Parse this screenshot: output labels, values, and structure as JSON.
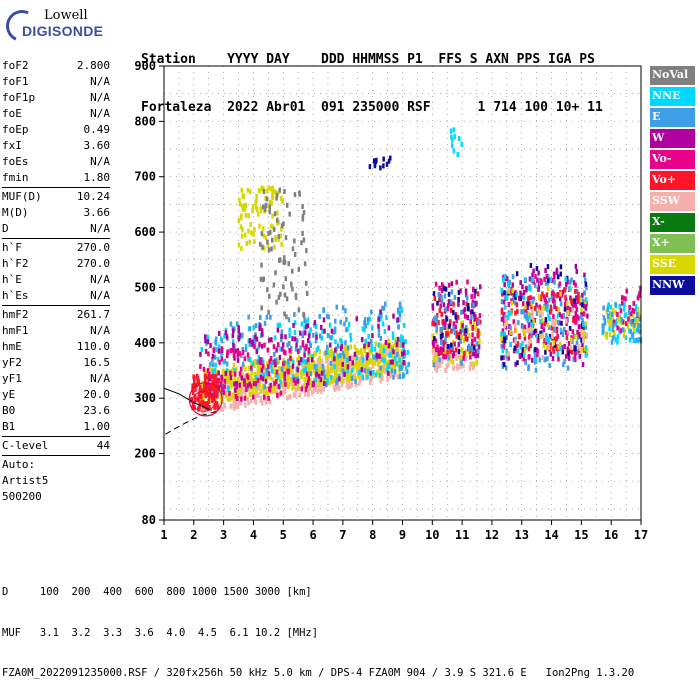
{
  "logo": {
    "line1": "Lowell",
    "line2": "DIGISONDE"
  },
  "header": {
    "line1": "Station    YYYY DAY    DDD HHMMSS P1  FFS S AXN PPS IGA PS",
    "line2": "Fortaleza  2022 Abr01  091 235000 RSF      1 714 100 10+ 11"
  },
  "params": {
    "group1": [
      {
        "k": "foF2",
        "v": "2.800"
      },
      {
        "k": "foF1",
        "v": "N/A"
      },
      {
        "k": "foF1p",
        "v": "N/A"
      },
      {
        "k": "foE",
        "v": "N/A"
      },
      {
        "k": "foEp",
        "v": "0.49"
      },
      {
        "k": "fxI",
        "v": "3.60"
      },
      {
        "k": "foEs",
        "v": "N/A"
      },
      {
        "k": "fmin",
        "v": "1.80"
      }
    ],
    "group2": [
      {
        "k": "MUF(D)",
        "v": "10.24"
      },
      {
        "k": "M(D)",
        "v": "3.66"
      },
      {
        "k": "D",
        "v": "N/A"
      }
    ],
    "group3": [
      {
        "k": "h`F",
        "v": "270.0"
      },
      {
        "k": "h`F2",
        "v": "270.0"
      },
      {
        "k": "h`E",
        "v": "N/A"
      },
      {
        "k": "h`Es",
        "v": "N/A"
      }
    ],
    "group4": [
      {
        "k": "hmF2",
        "v": "261.7"
      },
      {
        "k": "hmF1",
        "v": "N/A"
      },
      {
        "k": "hmE",
        "v": "110.0"
      },
      {
        "k": "yF2",
        "v": "16.5"
      },
      {
        "k": "yF1",
        "v": "N/A"
      },
      {
        "k": "yE",
        "v": "20.0"
      },
      {
        "k": "B0",
        "v": "23.6"
      },
      {
        "k": "B1",
        "v": "1.00"
      }
    ],
    "group5": [
      {
        "k": "C-level",
        "v": "44"
      }
    ],
    "group6": [
      "Auto:",
      "Artist5",
      "500200"
    ]
  },
  "legend": [
    {
      "label": "NoVal",
      "color": "#808080"
    },
    {
      "label": "NNE",
      "color": "#00d8ff"
    },
    {
      "label": "E",
      "color": "#3e9ee6"
    },
    {
      "label": "W",
      "color": "#b0009e"
    },
    {
      "label": "Vo-",
      "color": "#e8008a"
    },
    {
      "label": "Vo+",
      "color": "#ff1428"
    },
    {
      "label": "SSW",
      "color": "#f5b0ac"
    },
    {
      "label": "X-",
      "color": "#0a7a10"
    },
    {
      "label": "X+",
      "color": "#7fbf54"
    },
    {
      "label": "SSE",
      "color": "#d8d800"
    },
    {
      "label": "NNW",
      "color": "#0c0c9c"
    }
  ],
  "chart_data": {
    "type": "scatter",
    "xlim": [
      1,
      17
    ],
    "ylim": [
      80,
      900
    ],
    "xticks": [
      1,
      2,
      3,
      4,
      5,
      6,
      7,
      8,
      9,
      10,
      11,
      12,
      13,
      14,
      15,
      16,
      17
    ],
    "yticks": [
      80,
      200,
      300,
      400,
      500,
      600,
      700,
      800,
      900
    ],
    "grid": true,
    "legend_position": "right",
    "clusters": [
      {
        "color": "#f5b0ac",
        "xmin": 2.2,
        "xmax": 9.0,
        "ymin": 270,
        "ymax": 330,
        "slope": 10,
        "n": 500
      },
      {
        "color": "#d8d800",
        "xmin": 2.2,
        "xmax": 9.0,
        "ymin": 288,
        "ymax": 350,
        "slope": 9,
        "n": 520
      },
      {
        "color": "#d8d800",
        "xmin": 3.5,
        "xmax": 5.0,
        "ymin": 570,
        "ymax": 680,
        "slope": 0,
        "n": 90
      },
      {
        "color": "#00d8ff",
        "xmin": 2.2,
        "xmax": 9.2,
        "ymin": 300,
        "ymax": 420,
        "slope": 6,
        "n": 180
      },
      {
        "color": "#3e9ee6",
        "xmin": 2.5,
        "xmax": 9.2,
        "ymin": 300,
        "ymax": 440,
        "slope": 6,
        "n": 160
      },
      {
        "color": "#b0009e",
        "xmin": 2.2,
        "xmax": 9.2,
        "ymin": 300,
        "ymax": 420,
        "slope": 6,
        "n": 140
      },
      {
        "color": "#e8008a",
        "xmin": 2.2,
        "xmax": 6.0,
        "ymin": 290,
        "ymax": 390,
        "slope": 4,
        "n": 110
      },
      {
        "color": "#ff1428",
        "xmin": 1.9,
        "xmax": 2.8,
        "ymin": 280,
        "ymax": 340,
        "slope": 0,
        "n": 90
      },
      {
        "color": "#808080",
        "xmin": 4.2,
        "xmax": 5.8,
        "ymin": 440,
        "ymax": 680,
        "slope": 0,
        "n": 80
      },
      {
        "color": "#0c0c9c",
        "xmin": 7.8,
        "xmax": 8.6,
        "ymin": 715,
        "ymax": 735,
        "slope": 0,
        "n": 12
      },
      {
        "color": "#00d8ff",
        "xmin": 10.6,
        "xmax": 11.0,
        "ymin": 740,
        "ymax": 790,
        "slope": 0,
        "n": 10
      },
      {
        "color": "#f5b0ac",
        "xmin": 10.0,
        "xmax": 11.4,
        "ymin": 350,
        "ymax": 390,
        "slope": 0,
        "n": 60
      },
      {
        "color": "#d8d800",
        "xmin": 10.0,
        "xmax": 11.6,
        "ymin": 360,
        "ymax": 440,
        "slope": 0,
        "n": 60
      },
      {
        "color": "#e8008a",
        "xmin": 10.0,
        "xmax": 11.6,
        "ymin": 370,
        "ymax": 510,
        "slope": 0,
        "n": 60
      },
      {
        "color": "#b0009e",
        "xmin": 10.0,
        "xmax": 11.6,
        "ymin": 370,
        "ymax": 510,
        "slope": 0,
        "n": 50
      },
      {
        "color": "#ff1428",
        "xmin": 10.0,
        "xmax": 11.6,
        "ymin": 380,
        "ymax": 490,
        "slope": 0,
        "n": 40
      },
      {
        "color": "#3e9ee6",
        "xmin": 10.0,
        "xmax": 11.6,
        "ymin": 360,
        "ymax": 500,
        "slope": 0,
        "n": 40
      },
      {
        "color": "#0c0c9c",
        "xmin": 10.0,
        "xmax": 11.6,
        "ymin": 380,
        "ymax": 500,
        "slope": 0,
        "n": 25
      },
      {
        "color": "#b0009e",
        "xmin": 12.3,
        "xmax": 15.2,
        "ymin": 360,
        "ymax": 540,
        "slope": 0,
        "n": 120
      },
      {
        "color": "#3e9ee6",
        "xmin": 12.3,
        "xmax": 15.2,
        "ymin": 350,
        "ymax": 520,
        "slope": 0,
        "n": 120
      },
      {
        "color": "#e8008a",
        "xmin": 12.3,
        "xmax": 15.2,
        "ymin": 370,
        "ymax": 520,
        "slope": 0,
        "n": 110
      },
      {
        "color": "#ff1428",
        "xmin": 12.3,
        "xmax": 15.2,
        "ymin": 380,
        "ymax": 500,
        "slope": 0,
        "n": 60
      },
      {
        "color": "#0c0c9c",
        "xmin": 12.3,
        "xmax": 15.2,
        "ymin": 360,
        "ymax": 540,
        "slope": 0,
        "n": 50
      },
      {
        "color": "#d8d800",
        "xmin": 12.3,
        "xmax": 15.2,
        "ymin": 380,
        "ymax": 500,
        "slope": 0,
        "n": 50
      },
      {
        "color": "#00d8ff",
        "xmin": 12.3,
        "xmax": 15.2,
        "ymin": 370,
        "ymax": 520,
        "slope": 0,
        "n": 50
      },
      {
        "color": "#f5b0ac",
        "xmin": 12.3,
        "xmax": 15.2,
        "ymin": 370,
        "ymax": 460,
        "slope": 0,
        "n": 30
      },
      {
        "color": "#00d8ff",
        "xmin": 15.7,
        "xmax": 17.0,
        "ymin": 400,
        "ymax": 470,
        "slope": 0,
        "n": 50
      },
      {
        "color": "#d8d800",
        "xmin": 15.7,
        "xmax": 17.0,
        "ymin": 410,
        "ymax": 460,
        "slope": 0,
        "n": 40
      },
      {
        "color": "#e8008a",
        "xmin": 16.0,
        "xmax": 17.0,
        "ymin": 420,
        "ymax": 500,
        "slope": 0,
        "n": 25
      },
      {
        "color": "#3e9ee6",
        "xmin": 15.7,
        "xmax": 17.0,
        "ymin": 400,
        "ymax": 470,
        "slope": 0,
        "n": 30
      }
    ],
    "trace_dashed": {
      "x": [
        1.05,
        1.6,
        2.2,
        2.9
      ],
      "y": [
        235,
        252,
        268,
        278
      ]
    },
    "trace_solid": {
      "x": [
        1.0,
        1.5,
        2.0,
        2.6
      ],
      "y": [
        318,
        308,
        292,
        278
      ]
    },
    "contour": {
      "cx": 2.4,
      "cy": 298,
      "rx": 0.55,
      "ry": 30
    }
  },
  "footer": {
    "line1": "D     100  200  400  600  800 1000 1500 3000 [km]",
    "line2": "MUF   3.1  3.2  3.3  3.6  4.0  4.5  6.1 10.2 [MHz]",
    "line3": "FZA0M_2022091235000.RSF / 320fx256h 50 kHz 5.0 km / DPS-4 FZA0M 904 / 3.9 S 321.6 E   Ion2Png 1.3.20"
  }
}
